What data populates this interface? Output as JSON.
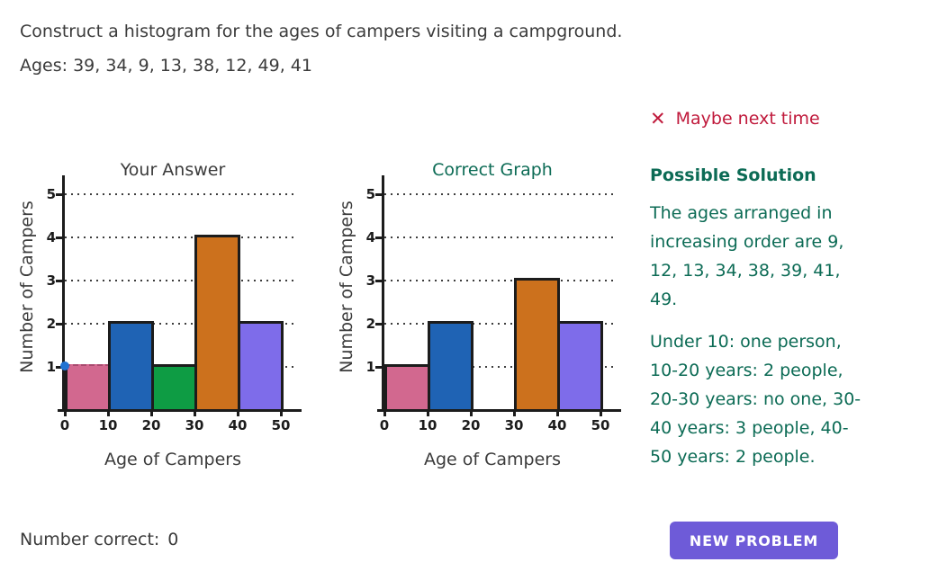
{
  "question": {
    "line1": "Construct a histogram for the ages of campers visiting a campground.",
    "line2": "Ages: 39, 34, 9, 13, 38, 12, 49, 41"
  },
  "feedback": {
    "icon": "✕",
    "text": "Maybe next time",
    "color": "#c01a3c"
  },
  "solution": {
    "heading": "Possible Solution",
    "color": "#0c6b55",
    "para1": "The ages arranged in increasing order are 9, 12, 13, 34, 38, 39, 41, 49.",
    "para2": "Under 10: one person, 10-20 years: 2 people, 20-30 years: no one, 30-40 years: 3 people, 40-50 years: 2 people."
  },
  "chart_data": [
    {
      "type": "bar",
      "variant": "histogram",
      "title": "Your Answer",
      "title_color": "#3b3b3b",
      "xlabel": "Age of Campers",
      "ylabel": "Number of Campers",
      "bins": [
        "0-10",
        "10-20",
        "20-30",
        "30-40",
        "40-50"
      ],
      "bin_edges": [
        0,
        10,
        20,
        30,
        40,
        50
      ],
      "values": [
        1,
        2,
        1,
        4,
        2
      ],
      "bar_colors": [
        "#d2688f",
        "#1f63b4",
        "#0e9c44",
        "#cc711d",
        "#7e6cea"
      ],
      "xticks": [
        0,
        10,
        20,
        30,
        40,
        50
      ],
      "yticks": [
        1,
        2,
        3,
        4,
        5
      ],
      "ylim": [
        0,
        5.5
      ],
      "grid": "horizontal-dotted",
      "legend": false,
      "interactive": true,
      "handle": {
        "x": 0,
        "y": 1,
        "color": "#2273d2"
      }
    },
    {
      "type": "bar",
      "variant": "histogram",
      "title": "Correct Graph",
      "title_color": "#0c6b55",
      "xlabel": "Age of Campers",
      "ylabel": "Number of Campers",
      "bins": [
        "0-10",
        "10-20",
        "20-30",
        "30-40",
        "40-50"
      ],
      "bin_edges": [
        0,
        10,
        20,
        30,
        40,
        50
      ],
      "values": [
        1,
        2,
        0,
        3,
        2
      ],
      "bar_colors": [
        "#d2688f",
        "#1f63b4",
        "#0e9c44",
        "#cc711d",
        "#7e6cea"
      ],
      "xticks": [
        0,
        10,
        20,
        30,
        40,
        50
      ],
      "yticks": [
        1,
        2,
        3,
        4,
        5
      ],
      "ylim": [
        0,
        5.5
      ],
      "grid": "horizontal-dotted",
      "legend": false,
      "interactive": false
    }
  ],
  "footer": {
    "score_label": "Number correct:",
    "score_value": "0",
    "button_label": "NEW PROBLEM",
    "button_color": "#6e5bd8"
  }
}
